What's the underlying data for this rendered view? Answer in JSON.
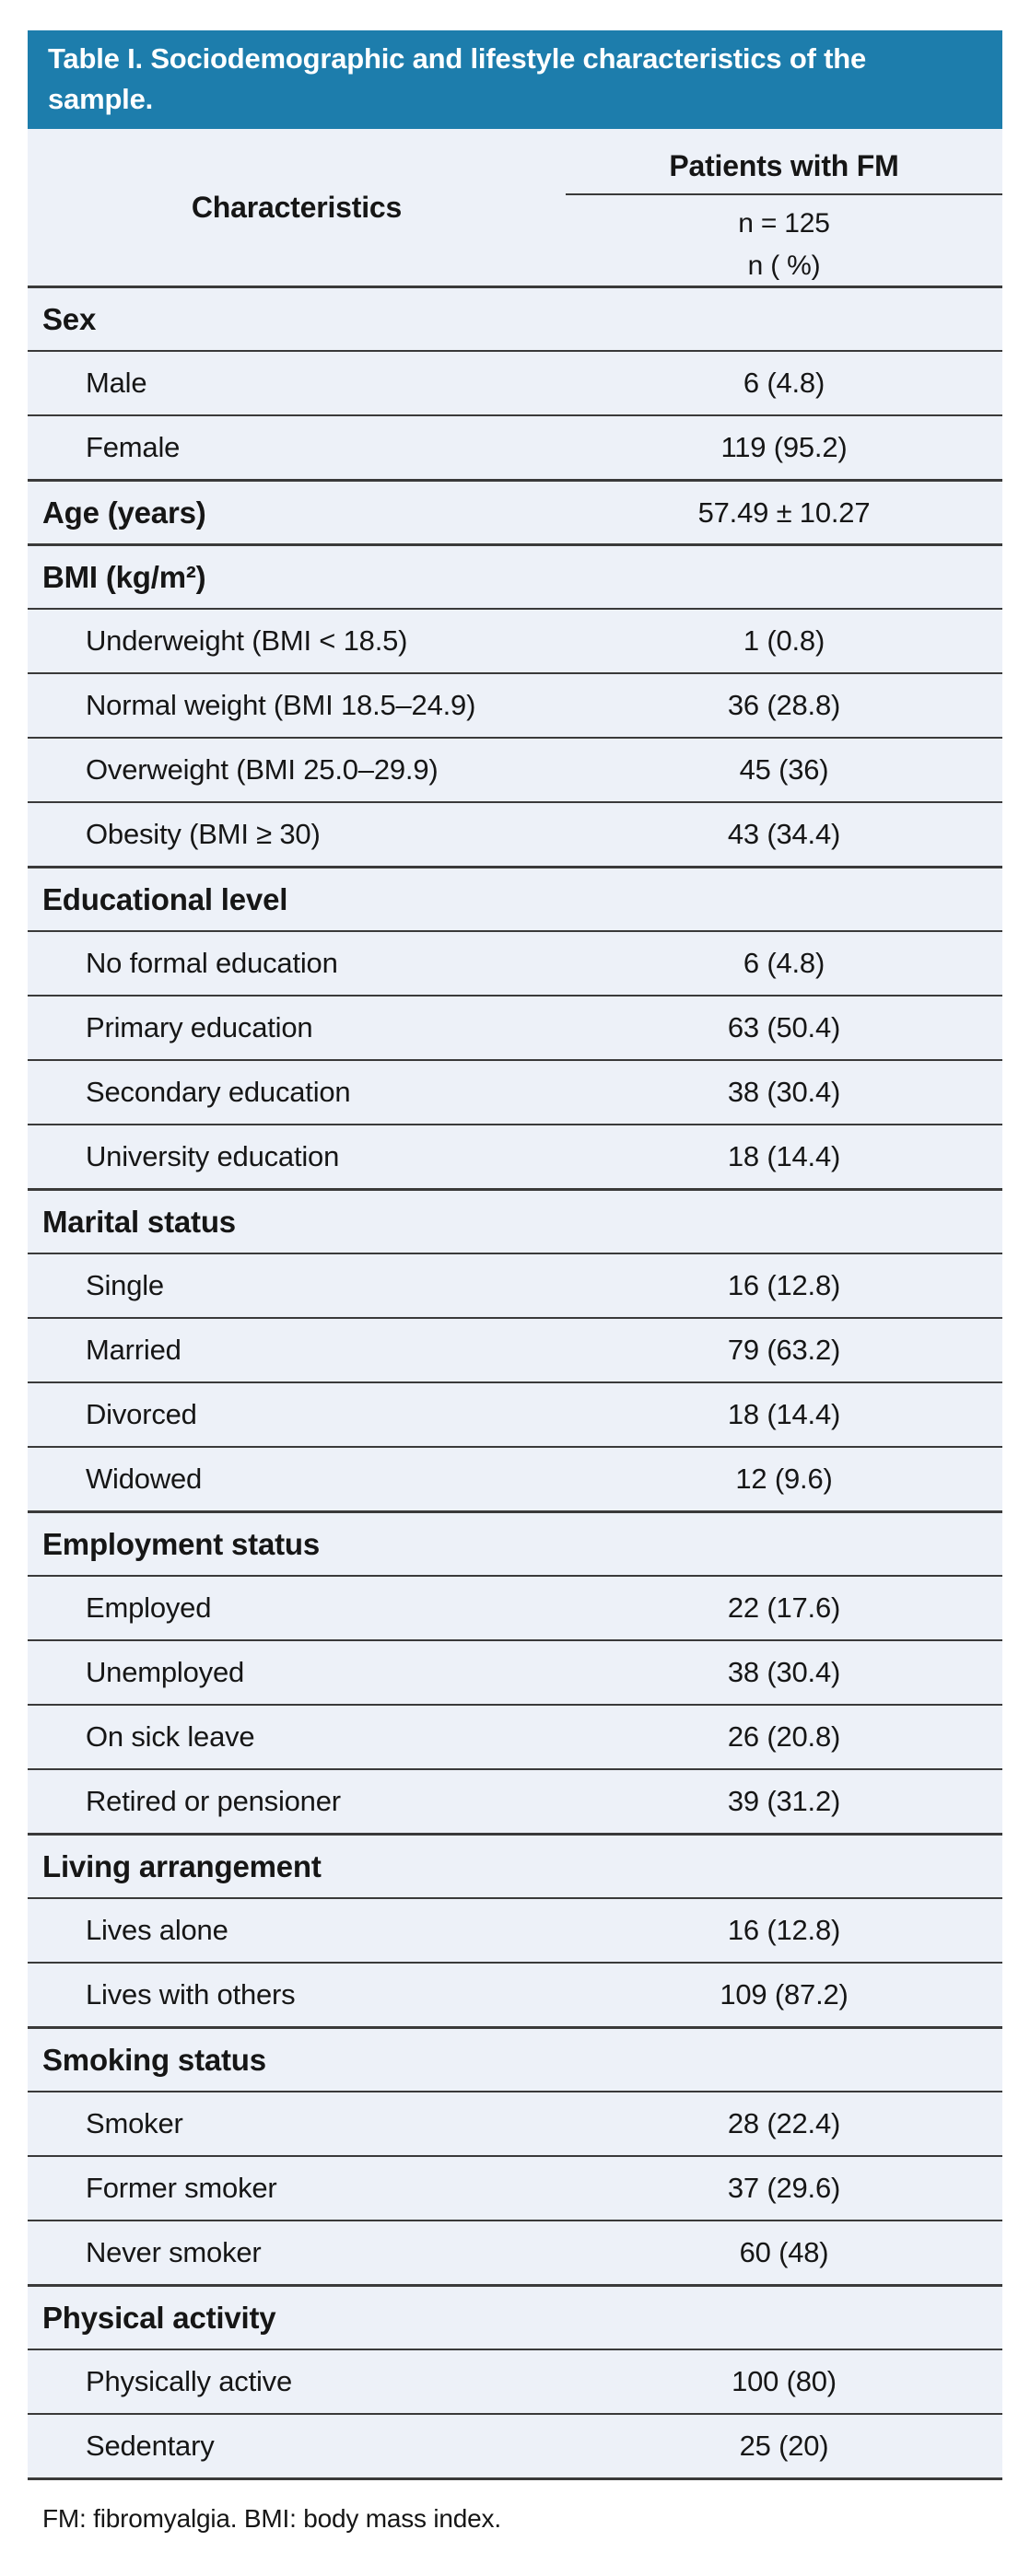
{
  "title": "Table I. Sociodemographic and lifestyle characteristics of the sample.",
  "columns": {
    "characteristics": "Characteristics",
    "group": "Patients with FM",
    "sub_n": "n = 125",
    "sub_pct": "n ( %)"
  },
  "rows": [
    {
      "kind": "section",
      "label": "Sex",
      "value": ""
    },
    {
      "kind": "item",
      "label": "Male",
      "value": "6 (4.8)"
    },
    {
      "kind": "item",
      "label": "Female",
      "value": "119 (95.2)"
    },
    {
      "kind": "section",
      "label": "Age (years)",
      "value": "57.49 ± 10.27"
    },
    {
      "kind": "section",
      "label": "BMI (kg/m²)",
      "value": ""
    },
    {
      "kind": "item",
      "label": "Underweight (BMI < 18.5)",
      "value": "1 (0.8)"
    },
    {
      "kind": "item",
      "label": "Normal weight (BMI 18.5–24.9)",
      "value": "36 (28.8)"
    },
    {
      "kind": "item",
      "label": "Overweight (BMI 25.0–29.9)",
      "value": "45 (36)"
    },
    {
      "kind": "item",
      "label": "Obesity (BMI ≥ 30)",
      "value": "43 (34.4)"
    },
    {
      "kind": "section",
      "label": "Educational level",
      "value": ""
    },
    {
      "kind": "item",
      "label": "No formal education",
      "value": "6 (4.8)"
    },
    {
      "kind": "item",
      "label": "Primary education",
      "value": "63 (50.4)"
    },
    {
      "kind": "item",
      "label": "Secondary education",
      "value": "38 (30.4)"
    },
    {
      "kind": "item",
      "label": "University education",
      "value": "18 (14.4)"
    },
    {
      "kind": "section",
      "label": "Marital status",
      "value": ""
    },
    {
      "kind": "item",
      "label": "Single",
      "value": "16 (12.8)"
    },
    {
      "kind": "item",
      "label": "Married",
      "value": "79 (63.2)"
    },
    {
      "kind": "item",
      "label": "Divorced",
      "value": "18 (14.4)"
    },
    {
      "kind": "item",
      "label": "Widowed",
      "value": "12 (9.6)"
    },
    {
      "kind": "section",
      "label": "Employment status",
      "value": ""
    },
    {
      "kind": "item",
      "label": "Employed",
      "value": "22 (17.6)"
    },
    {
      "kind": "item",
      "label": "Unemployed",
      "value": "38 (30.4)"
    },
    {
      "kind": "item",
      "label": "On sick leave",
      "value": "26 (20.8)"
    },
    {
      "kind": "item",
      "label": "Retired or pensioner",
      "value": "39 (31.2)"
    },
    {
      "kind": "section",
      "label": "Living arrangement",
      "value": ""
    },
    {
      "kind": "item",
      "label": "Lives alone",
      "value": "16 (12.8)"
    },
    {
      "kind": "item",
      "label": "Lives with others",
      "value": "109 (87.2)"
    },
    {
      "kind": "section",
      "label": "Smoking status",
      "value": ""
    },
    {
      "kind": "item",
      "label": "Smoker",
      "value": "28 (22.4)"
    },
    {
      "kind": "item",
      "label": "Former smoker",
      "value": "37 (29.6)"
    },
    {
      "kind": "item",
      "label": "Never smoker",
      "value": "60 (48)"
    },
    {
      "kind": "section",
      "label": "Physical activity",
      "value": ""
    },
    {
      "kind": "item",
      "label": "Physically active",
      "value": "100 (80)"
    },
    {
      "kind": "item",
      "label": "Sedentary",
      "value": "25 (20)"
    }
  ],
  "footnote": "FM: fibromyalgia. BMI: body mass index.",
  "colors": {
    "title_bg": "#1d7dac",
    "title_text": "#ffffff",
    "table_bg": "#edf1f8",
    "divider": "#3a3a3a",
    "text": "#161616"
  }
}
